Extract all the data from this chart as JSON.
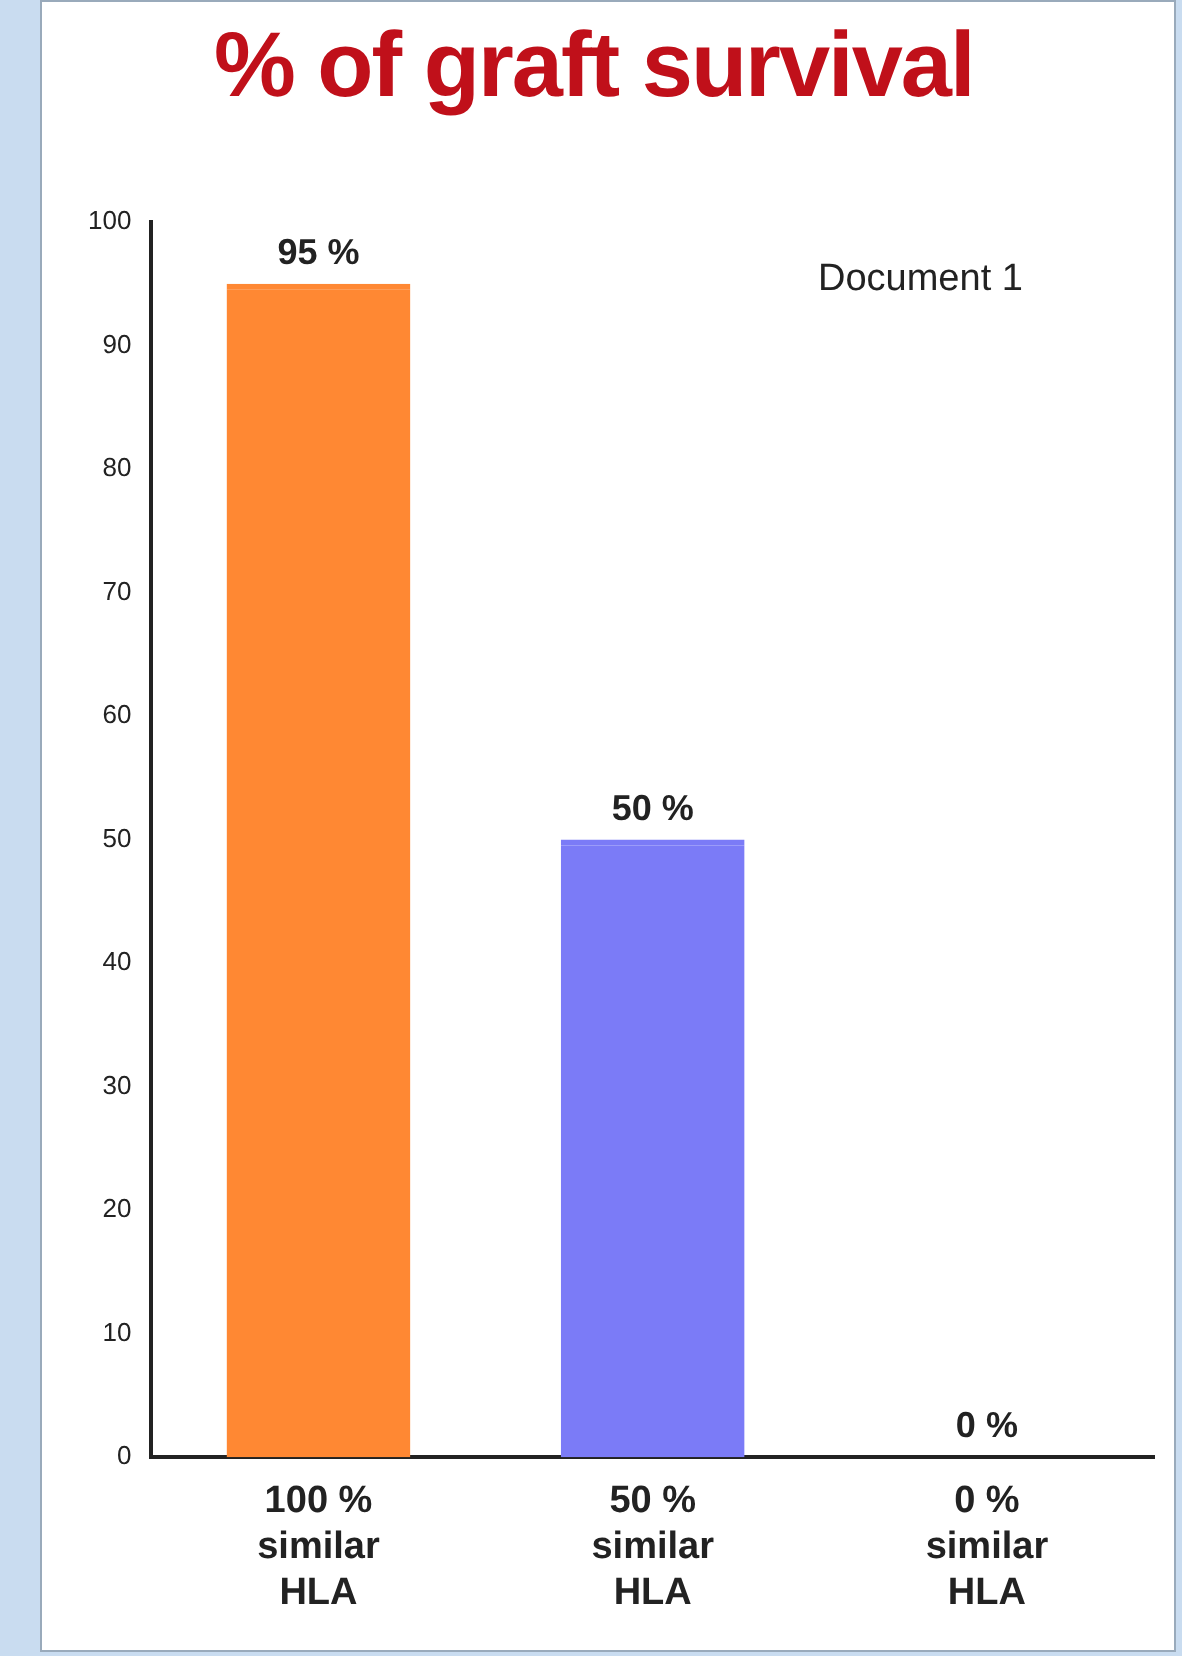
{
  "chart_data": {
    "type": "bar",
    "title": "% of graft survival",
    "categories": [
      "100 %\nsimilar\nHLA",
      "50 %\nsimilar\nHLA",
      "0 %\nsimilar\nHLA"
    ],
    "values": [
      95,
      50,
      0
    ],
    "colors": [
      "#ff8833",
      "#7b7bf7",
      "#c62828"
    ],
    "value_labels": [
      "95 %",
      "50 %",
      "0 %"
    ],
    "ylim": [
      0,
      100
    ],
    "yticks": [
      0,
      10,
      20,
      30,
      40,
      50,
      60,
      70,
      80,
      90,
      100
    ],
    "grid": false,
    "legend": false,
    "annotations": [
      "Document 1"
    ]
  }
}
